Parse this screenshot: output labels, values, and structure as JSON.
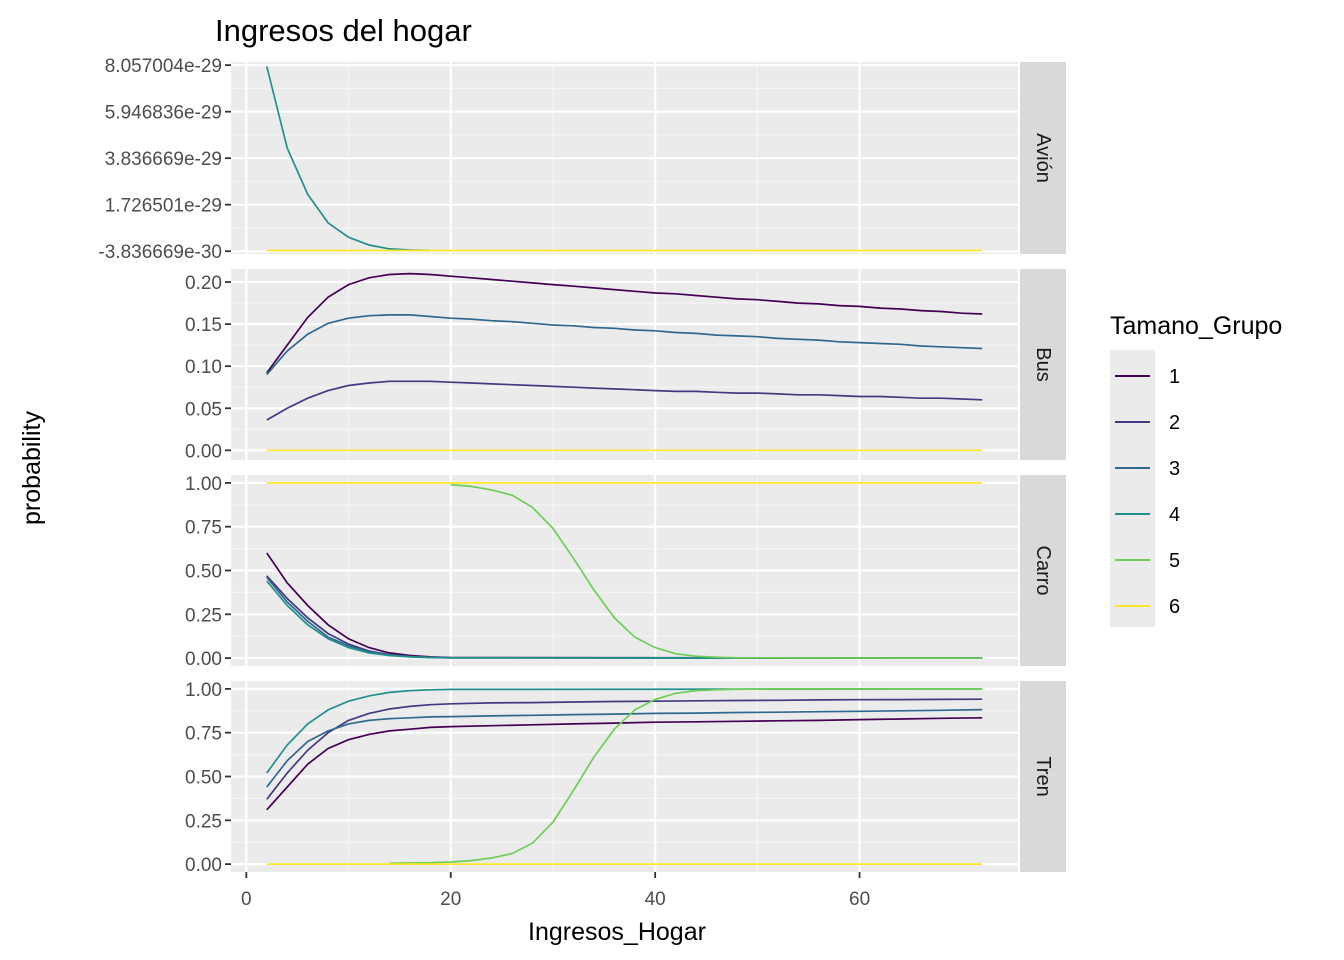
{
  "chart_data": {
    "type": "line",
    "title": "Ingresos del hogar",
    "xlabel": "Ingresos_Hogar",
    "ylabel": "probability",
    "xlim": [
      -1.5,
      75.5
    ],
    "x_ticks": [
      "0",
      "20",
      "40",
      "60"
    ],
    "x_tick_values": [
      0,
      20,
      40,
      60
    ],
    "legend": {
      "title": "Tamano_Grupo",
      "position": "right",
      "items": [
        {
          "name": "1",
          "color": "#440154"
        },
        {
          "name": "2",
          "color": "#443A83"
        },
        {
          "name": "3",
          "color": "#31688E"
        },
        {
          "name": "4",
          "color": "#21908C"
        },
        {
          "name": "5",
          "color": "#6ECE58"
        },
        {
          "name": "6",
          "color": "#FDE725"
        }
      ]
    },
    "x": [
      2,
      4,
      6,
      8,
      10,
      12,
      14,
      16,
      18,
      20,
      22,
      24,
      26,
      28,
      30,
      32,
      34,
      36,
      38,
      40,
      42,
      44,
      46,
      48,
      50,
      52,
      54,
      56,
      58,
      60,
      62,
      64,
      66,
      68,
      70,
      72
    ],
    "panels": [
      {
        "strip": "Avión",
        "ylim": [
          -5.1e-30,
          8.2e-29
        ],
        "y_ticks": [
          "-3.836669e-30",
          "1.726501e-29",
          "3.836669e-29",
          "5.946836e-29",
          "8.057004e-29"
        ],
        "y_tick_values": [
          -3.836669e-30,
          1.726501e-29,
          3.836669e-29,
          5.946836e-29,
          8.057004e-29
        ],
        "series": [
          {
            "name": "4",
            "x": [
              2,
              4,
              6,
              8,
              10,
              12,
              14,
              16,
              18
            ],
            "values": [
              8e-29,
              4.3e-29,
              2.2e-29,
              9e-30,
              2.5e-30,
              -1e-30,
              -2.8e-30,
              -3.3e-30,
              -3.5e-30
            ]
          },
          {
            "name": "6",
            "x": [
              2,
              72
            ],
            "values": [
              -3.5e-30,
              -3.5e-30
            ]
          }
        ]
      },
      {
        "strip": "Bus",
        "ylim": [
          -0.0115,
          0.2155
        ],
        "y_ticks": [
          "0.00",
          "0.05",
          "0.10",
          "0.15",
          "0.20"
        ],
        "y_tick_values": [
          0,
          0.05,
          0.1,
          0.15,
          0.2
        ],
        "series": [
          {
            "name": "1",
            "values": [
              0.092,
              0.125,
              0.158,
              0.182,
              0.197,
              0.205,
              0.209,
              0.21,
              0.209,
              0.207,
              0.205,
              0.203,
              0.201,
              0.199,
              0.197,
              0.195,
              0.193,
              0.191,
              0.189,
              0.187,
              0.186,
              0.184,
              0.182,
              0.18,
              0.179,
              0.177,
              0.175,
              0.174,
              0.172,
              0.171,
              0.169,
              0.168,
              0.166,
              0.165,
              0.163,
              0.162
            ]
          },
          {
            "name": "2",
            "values": [
              0.036,
              0.05,
              0.062,
              0.071,
              0.077,
              0.08,
              0.082,
              0.082,
              0.082,
              0.081,
              0.08,
              0.079,
              0.078,
              0.077,
              0.076,
              0.075,
              0.074,
              0.073,
              0.072,
              0.071,
              0.07,
              0.07,
              0.069,
              0.068,
              0.068,
              0.067,
              0.066,
              0.066,
              0.065,
              0.064,
              0.064,
              0.063,
              0.062,
              0.062,
              0.061,
              0.06
            ]
          },
          {
            "name": "3",
            "values": [
              0.09,
              0.118,
              0.138,
              0.151,
              0.157,
              0.16,
              0.161,
              0.161,
              0.159,
              0.157,
              0.156,
              0.154,
              0.153,
              0.151,
              0.149,
              0.148,
              0.146,
              0.145,
              0.143,
              0.142,
              0.14,
              0.139,
              0.137,
              0.136,
              0.135,
              0.133,
              0.132,
              0.131,
              0.129,
              0.128,
              0.127,
              0.126,
              0.124,
              0.123,
              0.122,
              0.121
            ]
          },
          {
            "name": "6",
            "x": [
              2,
              72
            ],
            "values": [
              0.0,
              0.0
            ]
          }
        ]
      },
      {
        "strip": "Carro",
        "ylim": [
          -0.045,
          1.045
        ],
        "y_ticks": [
          "0.00",
          "0.25",
          "0.50",
          "0.75",
          "1.00"
        ],
        "y_tick_values": [
          0,
          0.25,
          0.5,
          0.75,
          1.0
        ],
        "series": [
          {
            "name": "1",
            "x": [
              2,
              4,
              6,
              8,
              10,
              12,
              14,
              16,
              18,
              20,
              72
            ],
            "values": [
              0.6,
              0.43,
              0.3,
              0.19,
              0.11,
              0.06,
              0.03,
              0.015,
              0.007,
              0.003,
              0.0
            ]
          },
          {
            "name": "2",
            "x": [
              2,
              4,
              6,
              8,
              10,
              12,
              14,
              16,
              18,
              20,
              72
            ],
            "values": [
              0.47,
              0.34,
              0.23,
              0.14,
              0.08,
              0.04,
              0.02,
              0.01,
              0.004,
              0.002,
              0.0
            ]
          },
          {
            "name": "3",
            "x": [
              2,
              4,
              6,
              8,
              10,
              12,
              14,
              16,
              18,
              20,
              72
            ],
            "values": [
              0.46,
              0.32,
              0.21,
              0.12,
              0.07,
              0.035,
              0.018,
              0.008,
              0.004,
              0.002,
              0.0
            ]
          },
          {
            "name": "4",
            "x": [
              2,
              4,
              6,
              8,
              10,
              12,
              14,
              16,
              18,
              20,
              72
            ],
            "values": [
              0.44,
              0.3,
              0.19,
              0.11,
              0.06,
              0.03,
              0.015,
              0.007,
              0.003,
              0.001,
              0.0
            ]
          },
          {
            "name": "5",
            "x": [
              20,
              22,
              24,
              26,
              28,
              30,
              32,
              34,
              36,
              38,
              40,
              42,
              44,
              46,
              48,
              72
            ],
            "values": [
              0.99,
              0.98,
              0.96,
              0.93,
              0.86,
              0.74,
              0.57,
              0.39,
              0.23,
              0.12,
              0.06,
              0.025,
              0.011,
              0.005,
              0.002,
              0.0
            ]
          },
          {
            "name": "6",
            "x": [
              2,
              72
            ],
            "values": [
              1.0,
              1.0
            ]
          }
        ]
      },
      {
        "strip": "Tren",
        "ylim": [
          -0.045,
          1.045
        ],
        "y_ticks": [
          "0.00",
          "0.25",
          "0.50",
          "0.75",
          "1.00"
        ],
        "y_tick_values": [
          0,
          0.25,
          0.5,
          0.75,
          1.0
        ],
        "series": [
          {
            "name": "1",
            "x": [
              2,
              4,
              6,
              8,
              10,
              12,
              14,
              16,
              18,
              20,
              24,
              28,
              32,
              36,
              40,
              44,
              48,
              52,
              56,
              60,
              64,
              68,
              72
            ],
            "values": [
              0.31,
              0.44,
              0.57,
              0.66,
              0.71,
              0.74,
              0.76,
              0.77,
              0.78,
              0.785,
              0.79,
              0.795,
              0.8,
              0.805,
              0.81,
              0.812,
              0.815,
              0.818,
              0.82,
              0.825,
              0.828,
              0.832,
              0.835
            ]
          },
          {
            "name": "2",
            "x": [
              2,
              4,
              6,
              8,
              10,
              12,
              14,
              16,
              18,
              20,
              24,
              28,
              32,
              36,
              40,
              44,
              48,
              52,
              56,
              60,
              64,
              68,
              72
            ],
            "values": [
              0.37,
              0.52,
              0.65,
              0.75,
              0.82,
              0.86,
              0.885,
              0.9,
              0.91,
              0.915,
              0.92,
              0.922,
              0.925,
              0.928,
              0.93,
              0.932,
              0.934,
              0.935,
              0.937,
              0.938,
              0.939,
              0.94,
              0.941
            ]
          },
          {
            "name": "3",
            "x": [
              2,
              4,
              6,
              8,
              10,
              12,
              14,
              16,
              18,
              20,
              24,
              28,
              32,
              36,
              40,
              44,
              48,
              52,
              56,
              60,
              64,
              68,
              72
            ],
            "values": [
              0.44,
              0.59,
              0.7,
              0.76,
              0.8,
              0.82,
              0.83,
              0.835,
              0.84,
              0.842,
              0.846,
              0.849,
              0.853,
              0.856,
              0.86,
              0.862,
              0.865,
              0.867,
              0.87,
              0.872,
              0.875,
              0.878,
              0.882
            ]
          },
          {
            "name": "4",
            "x": [
              2,
              4,
              6,
              8,
              10,
              12,
              14,
              16,
              18,
              20,
              72
            ],
            "values": [
              0.52,
              0.68,
              0.8,
              0.88,
              0.93,
              0.96,
              0.98,
              0.99,
              0.995,
              0.997,
              1.0
            ]
          },
          {
            "name": "5",
            "x": [
              14,
              18,
              20,
              22,
              24,
              26,
              28,
              30,
              32,
              34,
              36,
              38,
              40,
              42,
              44,
              46,
              48,
              50,
              52,
              72
            ],
            "values": [
              0.005,
              0.008,
              0.012,
              0.02,
              0.035,
              0.06,
              0.12,
              0.24,
              0.42,
              0.61,
              0.77,
              0.88,
              0.94,
              0.975,
              0.99,
              0.995,
              0.998,
              0.999,
              1.0,
              1.0
            ]
          },
          {
            "name": "6",
            "x": [
              2,
              72
            ],
            "values": [
              0.0,
              0.0
            ]
          }
        ]
      }
    ]
  }
}
